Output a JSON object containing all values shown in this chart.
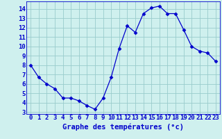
{
  "x": [
    0,
    1,
    2,
    3,
    4,
    5,
    6,
    7,
    8,
    9,
    10,
    11,
    12,
    13,
    14,
    15,
    16,
    17,
    18,
    19,
    20,
    21,
    22,
    23
  ],
  "y": [
    8.0,
    6.7,
    6.0,
    5.5,
    4.5,
    4.5,
    4.2,
    3.7,
    3.3,
    4.5,
    6.7,
    9.8,
    12.2,
    11.5,
    13.5,
    14.1,
    14.3,
    13.5,
    13.5,
    11.8,
    10.0,
    9.5,
    9.3,
    8.4
  ],
  "line_color": "#0000cc",
  "marker": "D",
  "marker_size": 2.5,
  "bg_color": "#cff0ee",
  "grid_color": "#99cccc",
  "xlabel": "Graphe des températures (°c)",
  "xlabel_color": "#0000cc",
  "ylabel_ticks": [
    3,
    4,
    5,
    6,
    7,
    8,
    9,
    10,
    11,
    12,
    13,
    14
  ],
  "xlim": [
    -0.5,
    23.5
  ],
  "ylim": [
    2.8,
    14.8
  ],
  "xticks": [
    0,
    1,
    2,
    3,
    4,
    5,
    6,
    7,
    8,
    9,
    10,
    11,
    12,
    13,
    14,
    15,
    16,
    17,
    18,
    19,
    20,
    21,
    22,
    23
  ],
  "tick_fontsize": 6.5,
  "label_fontsize": 7.5
}
